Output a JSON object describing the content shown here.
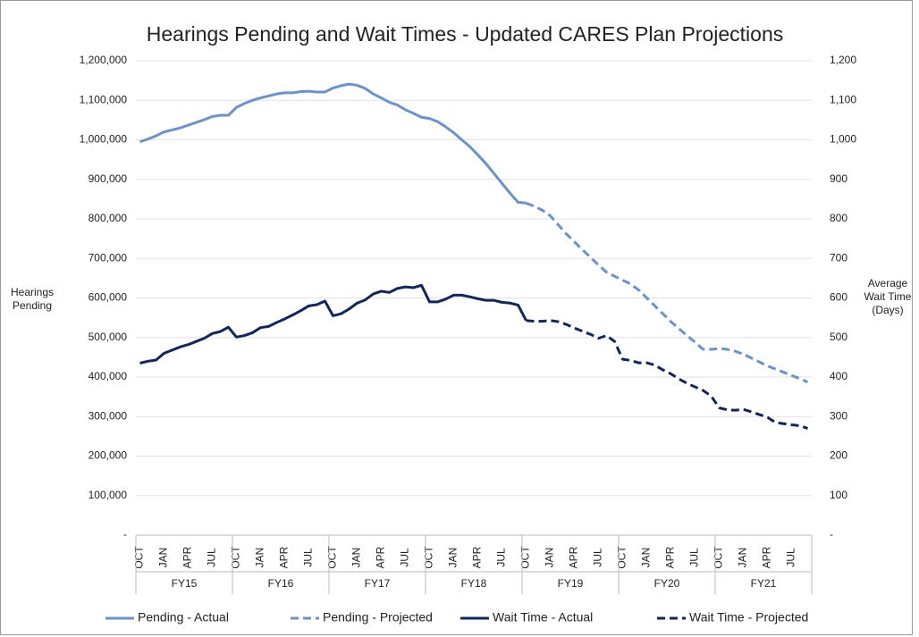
{
  "chart_data": {
    "type": "line",
    "title": "Hearings Pending and Wait Times - Updated CARES Plan Projections",
    "y_label": "Hearings Pending",
    "y2_label": "Average Wait Time (Days)",
    "categories": [
      "OCT",
      null,
      null,
      "JAN",
      null,
      null,
      "APR",
      null,
      null,
      "JUL",
      null,
      null,
      "OCT",
      null,
      null,
      "JAN",
      null,
      null,
      "APR",
      null,
      null,
      "JUL",
      null,
      null,
      "OCT",
      null,
      null,
      "JAN",
      null,
      null,
      "APR",
      null,
      null,
      "JUL",
      null,
      null,
      "OCT",
      null,
      null,
      "JAN",
      null,
      null,
      "APR",
      null,
      null,
      "JUL",
      null,
      null,
      "OCT",
      null,
      null,
      "JAN",
      null,
      null,
      "APR",
      null,
      null,
      "JUL",
      null,
      null,
      "OCT",
      null,
      null,
      "JAN",
      null,
      null,
      "APR",
      null,
      null,
      "JUL",
      null,
      null,
      "OCT",
      null,
      null,
      "JAN",
      null,
      null,
      "APR",
      null,
      null,
      "JUL",
      null,
      null
    ],
    "groups": [
      "FY15",
      "FY16",
      "FY17",
      "FY18",
      "FY19",
      "FY20",
      "FY21"
    ],
    "ylim": [
      0,
      1200000
    ],
    "yticks": [
      {
        "value": 0,
        "label": "-"
      },
      {
        "value": 100000,
        "label": "100,000"
      },
      {
        "value": 200000,
        "label": "200,000"
      },
      {
        "value": 300000,
        "label": "300,000"
      },
      {
        "value": 400000,
        "label": "400,000"
      },
      {
        "value": 500000,
        "label": "500,000"
      },
      {
        "value": 600000,
        "label": "600,000"
      },
      {
        "value": 700000,
        "label": "700,000"
      },
      {
        "value": 800000,
        "label": "800,000"
      },
      {
        "value": 900000,
        "label": "900,000"
      },
      {
        "value": 1000000,
        "label": "1,000,000"
      },
      {
        "value": 1100000,
        "label": "1,100,000"
      },
      {
        "value": 1200000,
        "label": "1,200,000"
      }
    ],
    "y2lim": [
      0,
      1200
    ],
    "y2ticks": [
      {
        "value": 0,
        "label": "-"
      },
      100,
      200,
      300,
      400,
      500,
      600,
      700,
      800,
      900,
      {
        "value": 1000,
        "label": "1,000"
      },
      {
        "value": 1100,
        "label": "1,100"
      },
      {
        "value": 1200,
        "label": "1,200"
      }
    ],
    "grid": true,
    "legend": "bottom",
    "series": [
      {
        "name": "Pending - Actual",
        "color": "#6a93c9",
        "dashed": false,
        "values": [
          995000,
          1002000,
          1010000,
          1020000,
          1025000,
          1030000,
          1037000,
          1044000,
          1051000,
          1059000,
          1062000,
          1062000,
          1082000,
          1092000,
          1100000,
          1106000,
          1111000,
          1116000,
          1119000,
          1119000,
          1122000,
          1123000,
          1121000,
          1121000,
          1131000,
          1137000,
          1141000,
          1138000,
          1130000,
          1116000,
          1106000,
          1095000,
          1088000,
          1076000,
          1067000,
          1057000,
          1054000,
          1046000,
          1033000,
          1018000,
          1000000,
          983000,
          962000,
          940000,
          915000,
          890000,
          865000,
          842000,
          840000,
          null,
          null,
          null,
          null,
          null,
          null,
          null,
          null,
          null,
          null,
          null,
          null,
          null,
          null,
          null,
          null,
          null,
          null,
          null,
          null,
          null,
          null,
          null,
          null,
          null,
          null,
          null,
          null,
          null,
          null,
          null,
          null,
          null,
          null,
          null
        ]
      },
      {
        "name": "Pending - Projected",
        "color": "#6a93c9",
        "dashed": true,
        "values": [
          null,
          null,
          null,
          null,
          null,
          null,
          null,
          null,
          null,
          null,
          null,
          null,
          null,
          null,
          null,
          null,
          null,
          null,
          null,
          null,
          null,
          null,
          null,
          null,
          null,
          null,
          null,
          null,
          null,
          null,
          null,
          null,
          null,
          null,
          null,
          null,
          null,
          null,
          null,
          null,
          null,
          null,
          null,
          null,
          null,
          null,
          null,
          null,
          840000,
          832000,
          822000,
          808000,
          785000,
          762000,
          742000,
          722000,
          703000,
          683000,
          665000,
          655000,
          645000,
          635000,
          620000,
          600000,
          580000,
          560000,
          540000,
          522000,
          505000,
          488000,
          470000,
          470000,
          472000,
          470000,
          465000,
          458000,
          448000,
          438000,
          428000,
          420000,
          412000,
          404000,
          396000,
          387000
        ]
      },
      {
        "name": "Wait Time - Actual",
        "color": "#10275a",
        "dashed": false,
        "axis": "y2",
        "values": [
          435,
          440,
          443,
          460,
          468,
          476,
          482,
          490,
          498,
          510,
          515,
          526,
          501,
          505,
          512,
          525,
          528,
          538,
          547,
          557,
          568,
          580,
          583,
          592,
          555,
          560,
          572,
          587,
          595,
          610,
          617,
          614,
          624,
          628,
          626,
          632,
          590,
          590,
          597,
          607,
          607,
          603,
          598,
          594,
          594,
          589,
          587,
          582,
          543,
          null,
          null,
          null,
          null,
          null,
          null,
          null,
          null,
          null,
          null,
          null,
          null,
          null,
          null,
          null,
          null,
          null,
          null,
          null,
          null,
          null,
          null,
          null,
          null,
          null,
          null,
          null,
          null,
          null,
          null,
          null,
          null,
          null,
          null,
          null
        ]
      },
      {
        "name": "Wait Time - Projected",
        "color": "#10275a",
        "dashed": true,
        "axis": "y2",
        "values": [
          null,
          null,
          null,
          null,
          null,
          null,
          null,
          null,
          null,
          null,
          null,
          null,
          null,
          null,
          null,
          null,
          null,
          null,
          null,
          null,
          null,
          null,
          null,
          null,
          null,
          null,
          null,
          null,
          null,
          null,
          null,
          null,
          null,
          null,
          null,
          null,
          null,
          null,
          null,
          null,
          null,
          null,
          null,
          null,
          null,
          null,
          null,
          null,
          543,
          541,
          541,
          543,
          540,
          533,
          524,
          516,
          508,
          498,
          505,
          490,
          445,
          442,
          436,
          436,
          430,
          418,
          408,
          395,
          384,
          375,
          366,
          352,
          322,
          317,
          316,
          318,
          312,
          305,
          298,
          285,
          282,
          279,
          277,
          270
        ]
      }
    ]
  }
}
